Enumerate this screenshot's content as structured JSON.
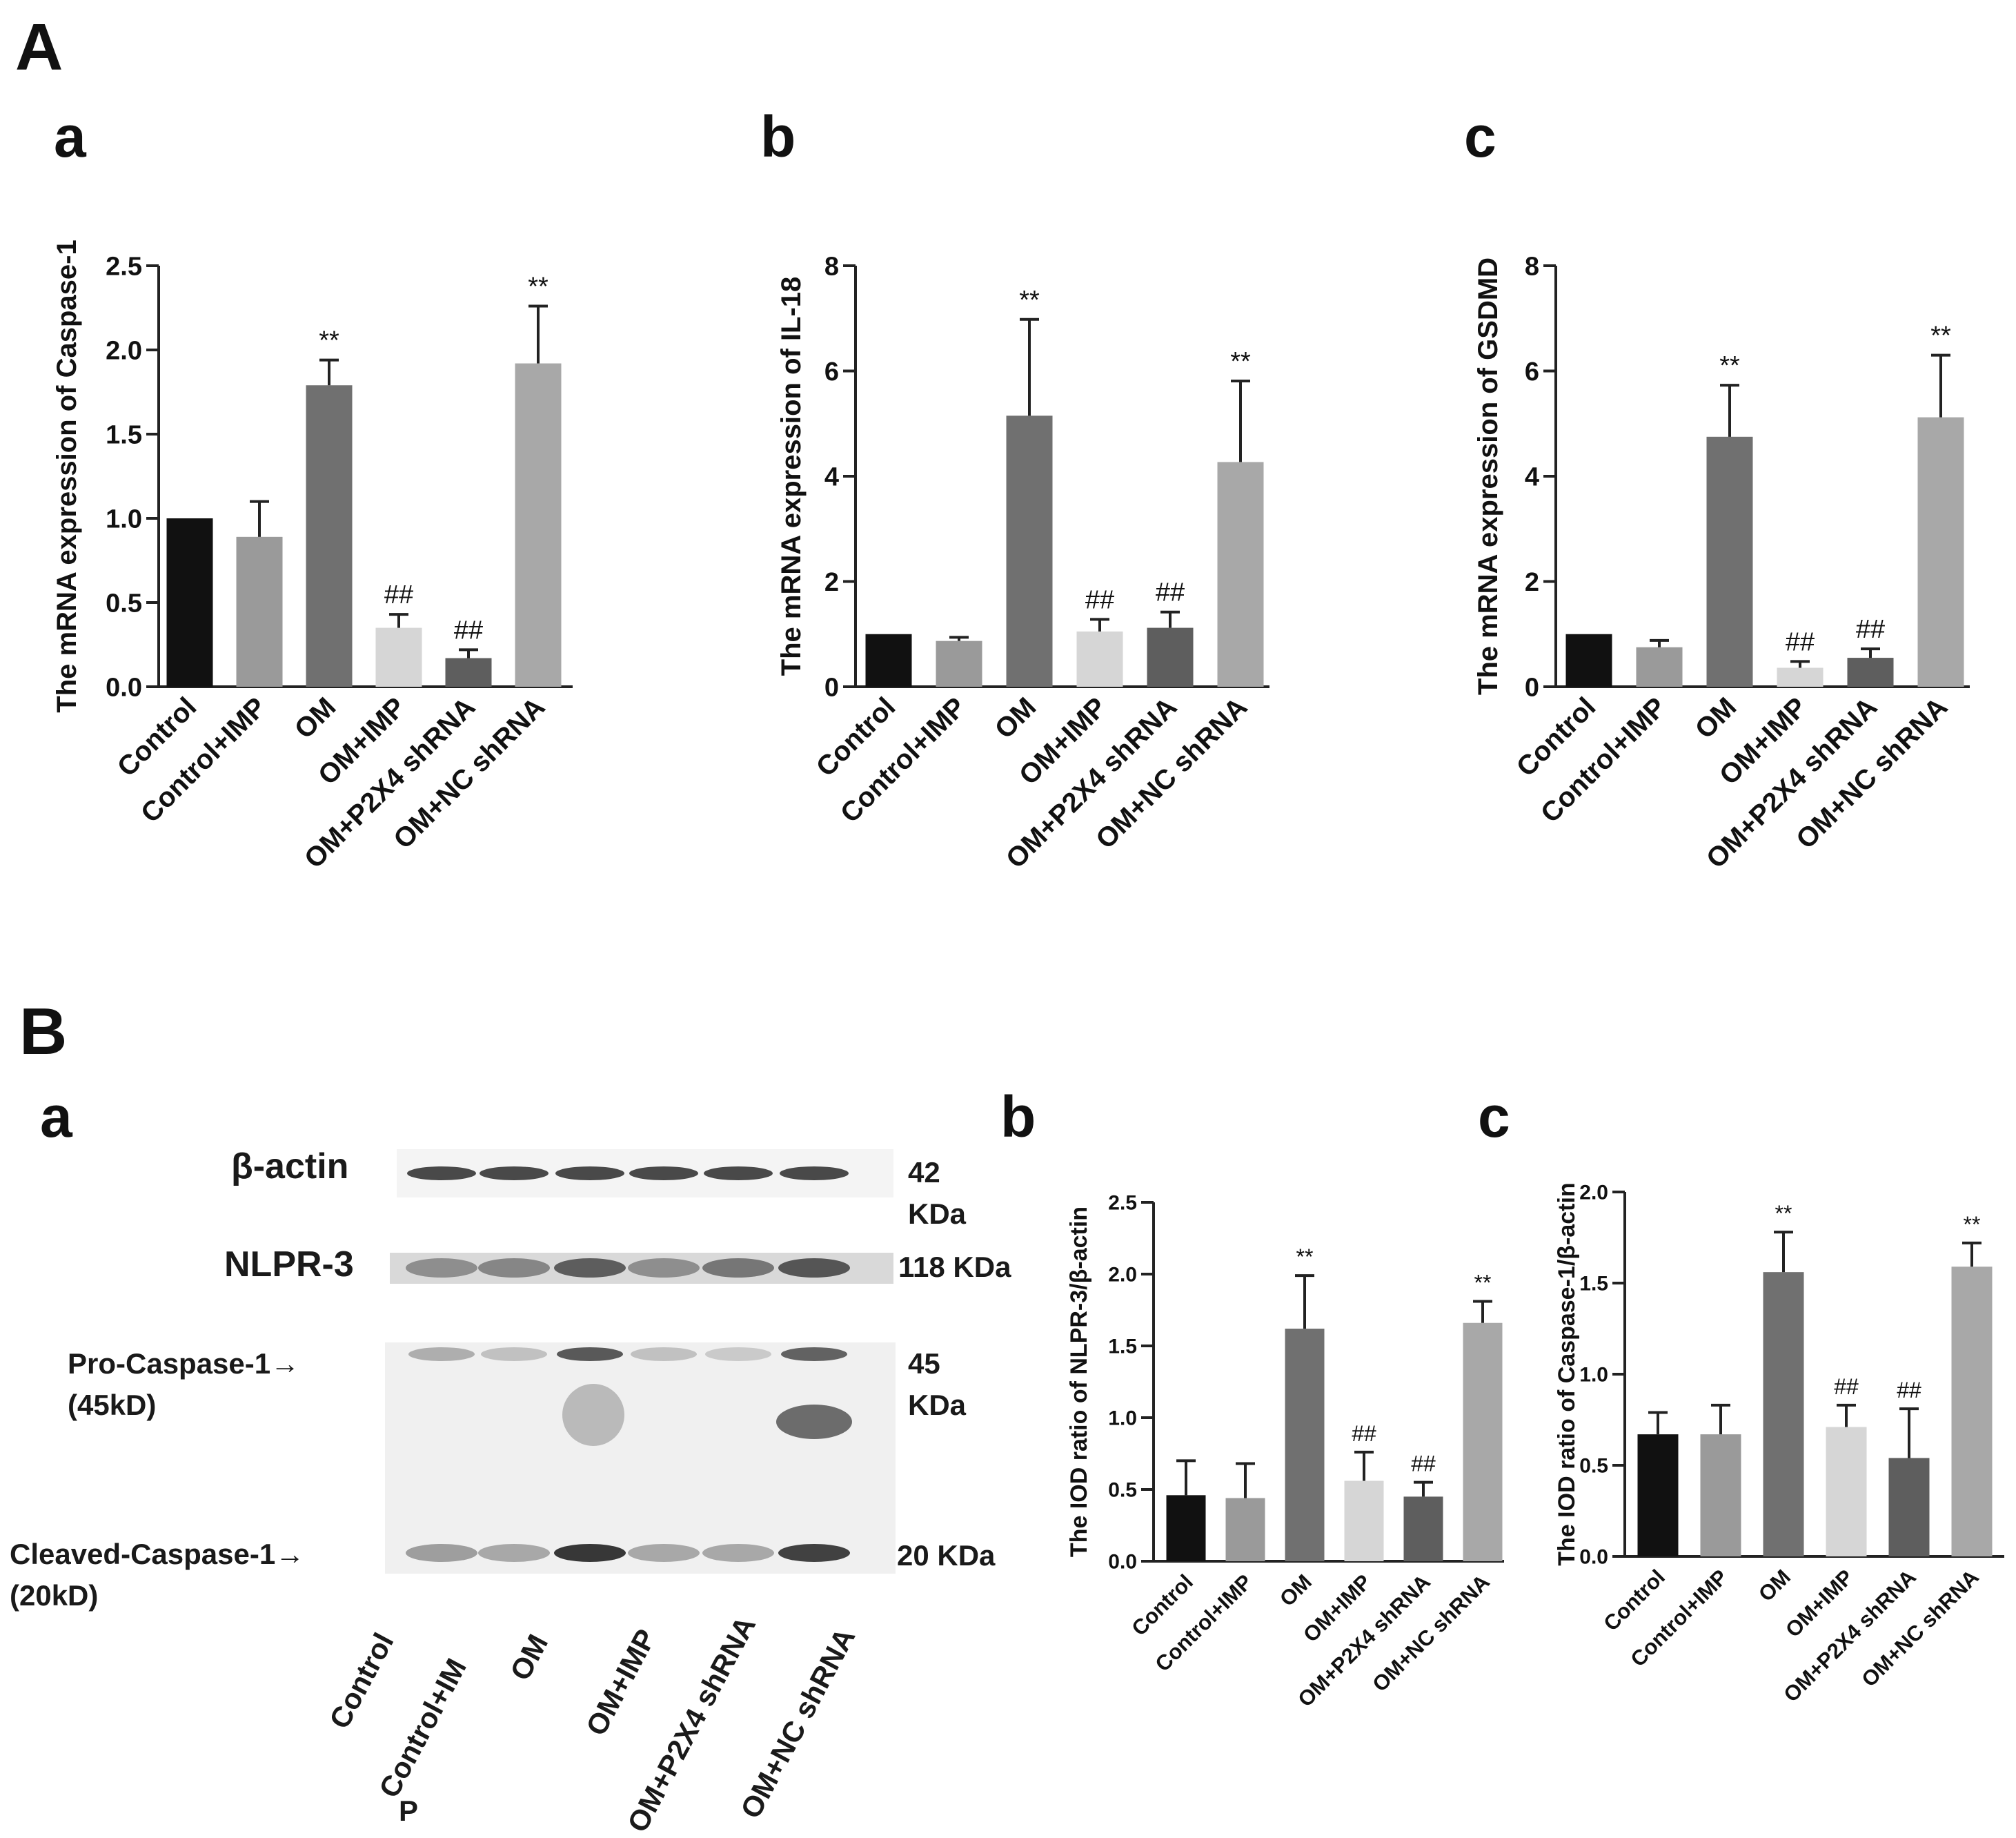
{
  "figure": {
    "sectionA": "A",
    "sectionB": "B",
    "subA": [
      "a",
      "b",
      "c"
    ],
    "subB": [
      "a",
      "b",
      "c"
    ]
  },
  "colors": {
    "Control": "#111111",
    "Control+IMP": "#9a9a9a",
    "OM": "#707070",
    "OM+IMP": "#d6d6d6",
    "OM+P2X4 shRNA": "#5e5e5e",
    "OM+NC shRNA": "#a8a8a8"
  },
  "chart_data": [
    {
      "id": "Aa",
      "type": "bar",
      "categories": [
        "Control",
        "Control+IMP",
        "OM",
        "OM+IMP",
        "OM+P2X4 shRNA",
        "OM+NC shRNA"
      ],
      "values": [
        1.0,
        0.89,
        1.79,
        0.35,
        0.17,
        1.92
      ],
      "errors": [
        0.0,
        0.21,
        0.15,
        0.08,
        0.05,
        0.34
      ],
      "annotations": [
        "",
        "",
        "**",
        "##",
        "##",
        "**"
      ],
      "ylabel": "The mRNA expression of Caspase-1",
      "ylim": [
        0,
        2.5
      ],
      "yticks": [
        "0.0",
        "0.5",
        "1.0",
        "1.5",
        "2.0",
        "2.5"
      ]
    },
    {
      "id": "Ab",
      "type": "bar",
      "categories": [
        "Control",
        "Control+IMP",
        "OM",
        "OM+IMP",
        "OM+P2X4 shRNA",
        "OM+NC shRNA"
      ],
      "values": [
        1.0,
        0.87,
        5.15,
        1.05,
        1.12,
        4.27
      ],
      "errors": [
        0.0,
        0.07,
        1.83,
        0.23,
        0.3,
        1.54
      ],
      "annotations": [
        "",
        "",
        "**",
        "##",
        "##",
        "**"
      ],
      "ylabel": "The mRNA expression of IL-18",
      "ylim": [
        0,
        8
      ],
      "yticks": [
        "0",
        "2",
        "4",
        "6",
        "8"
      ]
    },
    {
      "id": "Ac",
      "type": "bar",
      "categories": [
        "Control",
        "Control+IMP",
        "OM",
        "OM+IMP",
        "OM+P2X4 shRNA",
        "OM+NC shRNA"
      ],
      "values": [
        1.0,
        0.75,
        4.75,
        0.36,
        0.55,
        5.12
      ],
      "errors": [
        0.0,
        0.13,
        0.98,
        0.12,
        0.17,
        1.18
      ],
      "annotations": [
        "",
        "",
        "**",
        "##",
        "##",
        "**"
      ],
      "ylabel": "The mRNA expression of GSDMD",
      "ylim": [
        0,
        8
      ],
      "yticks": [
        "0",
        "2",
        "4",
        "6",
        "8"
      ]
    },
    {
      "id": "Bb",
      "type": "bar",
      "categories": [
        "Control",
        "Control+IMP",
        "OM",
        "OM+IMP",
        "OM+P2X4 shRNA",
        "OM+NC shRNA"
      ],
      "values": [
        0.46,
        0.44,
        1.62,
        0.56,
        0.45,
        1.66
      ],
      "errors": [
        0.24,
        0.24,
        0.37,
        0.2,
        0.1,
        0.15
      ],
      "annotations": [
        "",
        "",
        "**",
        "##",
        "##",
        "**"
      ],
      "ylabel": "The IOD ratio of NLPR-3/β-actin",
      "ylim": [
        0,
        2.5
      ],
      "yticks": [
        "0.0",
        "0.5",
        "1.0",
        "1.5",
        "2.0",
        "2.5"
      ]
    },
    {
      "id": "Bc",
      "type": "bar",
      "categories": [
        "Control",
        "Control+IMP",
        "OM",
        "OM+IMP",
        "OM+P2X4 shRNA",
        "OM+NC shRNA"
      ],
      "values": [
        0.67,
        0.67,
        1.56,
        0.71,
        0.54,
        1.59
      ],
      "errors": [
        0.12,
        0.16,
        0.22,
        0.12,
        0.27,
        0.13
      ],
      "annotations": [
        "",
        "",
        "**",
        "##",
        "##",
        "**"
      ],
      "ylabel": "The IOD ratio of Caspase-1/β-actin",
      "ylim": [
        0,
        2.0
      ],
      "yticks": [
        "0.0",
        "0.5",
        "1.0",
        "1.5",
        "2.0"
      ]
    }
  ],
  "western_blot": {
    "rows": [
      "β-actin",
      "NLPR-3",
      "Pro-Caspase-1→",
      "(45kD)",
      "Cleaved-Caspase-1→",
      "(20kD)"
    ],
    "sizes": [
      "42",
      "KDa",
      "118 KDa",
      "45",
      "KDa",
      "20 KDa"
    ],
    "lanes": [
      "Control",
      "Control+IM",
      "P",
      "OM",
      "OM+IMP",
      "OM+P2X4 shRNA",
      "OM+NC shRNA"
    ]
  }
}
